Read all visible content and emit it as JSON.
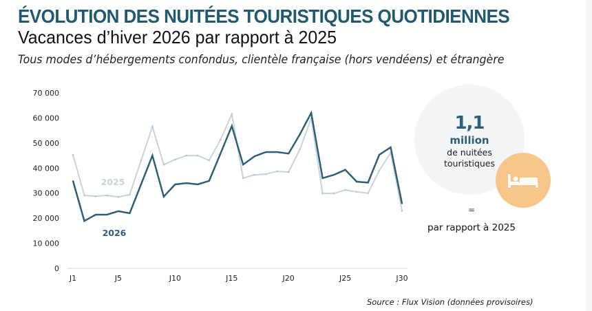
{
  "header": {
    "title": "ÉVOLUTION DES NUITÉES TOURISTIQUES QUOTIDIENNES",
    "subtitle": "Vacances d’hiver 2026 par rapport à 2025",
    "scope": "Tous modes d’hébergements confondus, clientèle française (hors vendéens) et étrangère"
  },
  "colors": {
    "title": "#1f5a6e",
    "series_2026": "#2f5f77",
    "series_2025": "#c9d3da",
    "stat_circle": "#f4f5f6",
    "bed_circle": "#f8c68b",
    "axis": "#e6e6e6"
  },
  "chart_data": {
    "type": "line",
    "title": "Évolution des nuitées touristiques quotidiennes",
    "xlabel": "",
    "ylabel": "",
    "ylim": [
      0,
      70000
    ],
    "yticks": [
      0,
      10000,
      20000,
      30000,
      40000,
      50000,
      60000,
      70000
    ],
    "ytick_labels": [
      "0",
      "10 000",
      "20 000",
      "30 000",
      "40 000",
      "50 000",
      "60 000",
      "70 000"
    ],
    "x": [
      "J1",
      "J2",
      "J3",
      "J4",
      "J5",
      "J6",
      "J7",
      "J8",
      "J9",
      "J10",
      "J11",
      "J12",
      "J13",
      "J14",
      "J15",
      "J16",
      "J17",
      "J18",
      "J19",
      "J20",
      "J21",
      "J22",
      "J23",
      "J24",
      "J25",
      "J26",
      "J27",
      "J28",
      "J29",
      "J30"
    ],
    "xtick_labels": [
      "J1",
      "J5",
      "J10",
      "J15",
      "J20",
      "J25",
      "J30"
    ],
    "grid": false,
    "legend": "inline labels",
    "series": [
      {
        "name": "2025",
        "label": "2025",
        "values": [
          45300,
          29100,
          28800,
          29100,
          28500,
          29400,
          43000,
          56500,
          41400,
          43400,
          45000,
          45000,
          43100,
          51300,
          61500,
          36000,
          37300,
          37600,
          38700,
          38400,
          47500,
          59800,
          29900,
          29900,
          31300,
          30500,
          30000,
          39000,
          46100,
          23000
        ]
      },
      {
        "name": "2026",
        "label": "2026",
        "values": [
          34900,
          18900,
          21400,
          21400,
          22800,
          22000,
          33500,
          45000,
          28600,
          33500,
          34000,
          33500,
          34900,
          45800,
          56800,
          41400,
          44700,
          46400,
          46400,
          45800,
          53500,
          62000,
          36000,
          37300,
          39300,
          34600,
          34200,
          45300,
          48300,
          25800
        ]
      }
    ]
  },
  "summary": {
    "value": "1,1",
    "unit": "million",
    "description_line1": "de nuitées",
    "description_line2": "touristiques",
    "icon": "bed-icon",
    "change_symbol": "=",
    "comparison": "par rapport à 2025"
  },
  "footer": {
    "source": "Source : Flux Vision (données provisoires)"
  }
}
